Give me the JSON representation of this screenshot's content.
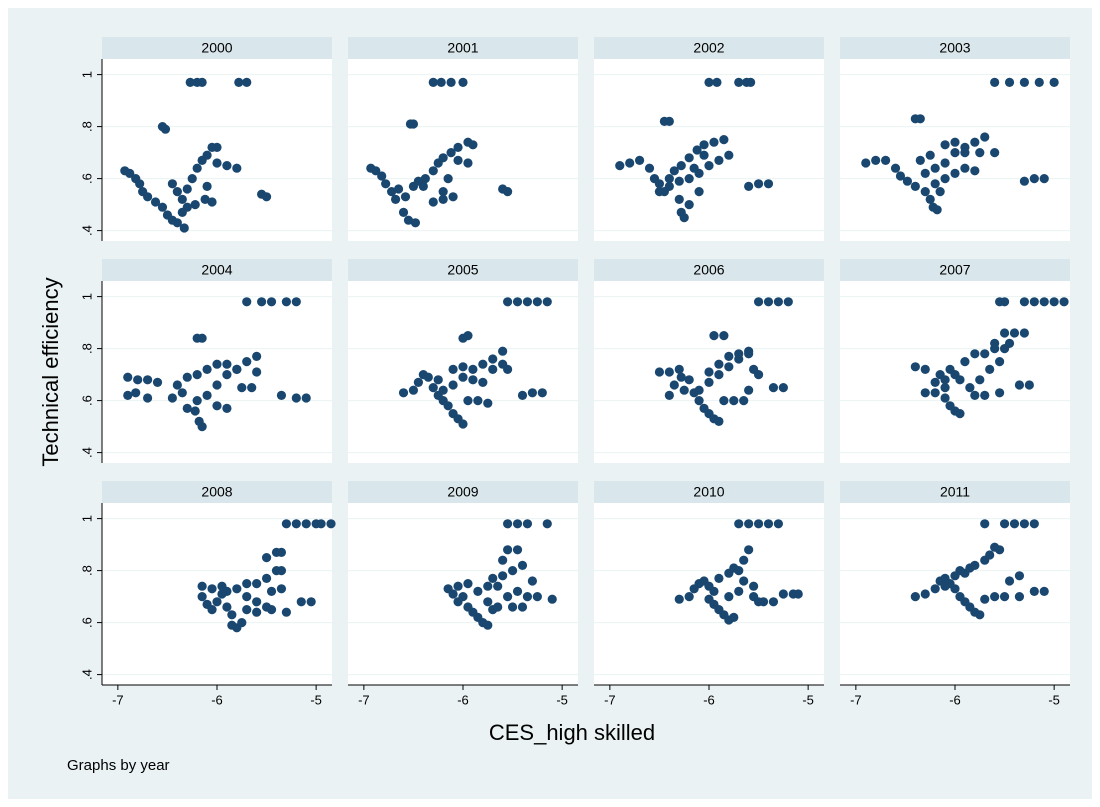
{
  "chart_data": {
    "type": "scatter",
    "x_label": "CES_high skilled",
    "y_label": "Technical efficiency",
    "note": "Graphs by year",
    "color": "#1a476f",
    "xlim": [
      -7.16,
      -4.84
    ],
    "ylim": [
      0.36,
      1.06
    ],
    "xticks": [
      -7,
      -6,
      -5
    ],
    "yticks": [
      {
        "value": 0.4,
        "label": ".4"
      },
      {
        "value": 0.6,
        "label": ".6"
      },
      {
        "value": 0.8,
        "label": ".8"
      },
      {
        "value": 1,
        "label": "1"
      }
    ],
    "grid": true,
    "panels": [
      {
        "title": "2000",
        "x": [
          -6.93,
          -6.88,
          -6.82,
          -6.78,
          -6.75,
          -6.7,
          -6.62,
          -6.55,
          -6.5,
          -6.45,
          -6.4,
          -6.33,
          -6.55,
          -6.52,
          -6.27,
          -6.2,
          -6.15,
          -5.78,
          -5.7,
          -6.45,
          -6.4,
          -6.35,
          -6.3,
          -6.25,
          -6.2,
          -6.15,
          -6.1,
          -6.05,
          -6.0,
          -6.3,
          -6.22,
          -6.12,
          -6.05,
          -6.1,
          -6.0,
          -5.9,
          -5.8,
          -5.55,
          -5.5,
          -6.35
        ],
        "y": [
          0.63,
          0.62,
          0.6,
          0.58,
          0.55,
          0.53,
          0.51,
          0.49,
          0.46,
          0.44,
          0.43,
          0.41,
          0.8,
          0.79,
          0.97,
          0.97,
          0.97,
          0.97,
          0.97,
          0.58,
          0.55,
          0.52,
          0.56,
          0.6,
          0.64,
          0.67,
          0.69,
          0.72,
          0.72,
          0.49,
          0.5,
          0.52,
          0.51,
          0.57,
          0.66,
          0.65,
          0.64,
          0.54,
          0.53,
          0.47
        ]
      },
      {
        "title": "2001",
        "x": [
          -6.93,
          -6.88,
          -6.82,
          -6.78,
          -6.72,
          -6.68,
          -6.6,
          -6.55,
          -6.48,
          -6.53,
          -6.5,
          -6.3,
          -6.22,
          -6.12,
          -6.0,
          -6.65,
          -6.58,
          -6.5,
          -6.45,
          -6.38,
          -6.3,
          -6.25,
          -6.2,
          -6.12,
          -6.05,
          -5.95,
          -5.9,
          -6.3,
          -6.2,
          -6.1,
          -6.4,
          -6.15,
          -6.05,
          -5.95,
          -5.6,
          -5.55,
          -6.2
        ],
        "y": [
          0.64,
          0.63,
          0.61,
          0.58,
          0.55,
          0.52,
          0.47,
          0.44,
          0.43,
          0.81,
          0.81,
          0.97,
          0.97,
          0.97,
          0.97,
          0.56,
          0.53,
          0.57,
          0.59,
          0.6,
          0.63,
          0.66,
          0.68,
          0.7,
          0.72,
          0.74,
          0.73,
          0.51,
          0.52,
          0.53,
          0.57,
          0.6,
          0.67,
          0.66,
          0.56,
          0.55,
          0.55
        ]
      },
      {
        "title": "2002",
        "x": [
          -6.9,
          -6.8,
          -6.7,
          -6.6,
          -6.55,
          -6.5,
          -6.45,
          -6.4,
          -6.35,
          -6.28,
          -6.2,
          -6.12,
          -6.05,
          -5.95,
          -5.85,
          -6.45,
          -6.4,
          -6.0,
          -5.92,
          -5.7,
          -5.62,
          -5.58,
          -6.5,
          -6.4,
          -6.3,
          -6.2,
          -6.1,
          -6.0,
          -5.9,
          -5.8,
          -6.3,
          -6.28,
          -6.25,
          -6.2,
          -6.1,
          -5.6,
          -5.5,
          -5.4,
          -6.15,
          -6.05
        ],
        "y": [
          0.65,
          0.66,
          0.67,
          0.64,
          0.6,
          0.58,
          0.55,
          0.6,
          0.63,
          0.65,
          0.68,
          0.71,
          0.73,
          0.74,
          0.75,
          0.82,
          0.82,
          0.97,
          0.97,
          0.97,
          0.97,
          0.97,
          0.55,
          0.57,
          0.59,
          0.6,
          0.62,
          0.65,
          0.67,
          0.69,
          0.52,
          0.47,
          0.45,
          0.5,
          0.55,
          0.57,
          0.58,
          0.58,
          0.64,
          0.69
        ]
      },
      {
        "title": "2003",
        "x": [
          -6.9,
          -6.8,
          -6.7,
          -6.6,
          -6.55,
          -6.48,
          -6.4,
          -6.3,
          -6.25,
          -6.22,
          -6.18,
          -6.4,
          -6.35,
          -5.6,
          -5.45,
          -5.3,
          -5.15,
          -5.0,
          -6.3,
          -6.2,
          -6.1,
          -6.0,
          -5.9,
          -5.8,
          -5.7,
          -6.35,
          -6.25,
          -6.1,
          -6.0,
          -5.9,
          -5.75,
          -5.6,
          -6.2,
          -6.1,
          -6.0,
          -5.9,
          -5.8,
          -5.3,
          -5.2,
          -5.1,
          -6.15
        ],
        "y": [
          0.66,
          0.67,
          0.67,
          0.64,
          0.61,
          0.59,
          0.57,
          0.55,
          0.52,
          0.49,
          0.48,
          0.83,
          0.83,
          0.97,
          0.97,
          0.97,
          0.97,
          0.97,
          0.62,
          0.64,
          0.66,
          0.7,
          0.72,
          0.74,
          0.76,
          0.67,
          0.69,
          0.73,
          0.74,
          0.7,
          0.7,
          0.7,
          0.58,
          0.6,
          0.62,
          0.64,
          0.63,
          0.59,
          0.6,
          0.6,
          0.55
        ]
      },
      {
        "title": "2004",
        "x": [
          -6.9,
          -6.8,
          -6.7,
          -6.6,
          -6.9,
          -6.82,
          -6.7,
          -6.45,
          -6.4,
          -6.35,
          -6.3,
          -6.22,
          -6.18,
          -6.15,
          -6.2,
          -6.15,
          -5.7,
          -5.55,
          -5.45,
          -5.3,
          -5.2,
          -6.2,
          -6.1,
          -6.0,
          -5.9,
          -5.8,
          -5.7,
          -5.6,
          -6.3,
          -6.2,
          -6.1,
          -6.0,
          -5.9,
          -5.8,
          -5.6,
          -6.0,
          -5.9,
          -5.75,
          -5.65,
          -5.35,
          -5.2,
          -5.1
        ],
        "y": [
          0.69,
          0.68,
          0.68,
          0.67,
          0.62,
          0.63,
          0.61,
          0.61,
          0.66,
          0.63,
          0.57,
          0.56,
          0.52,
          0.5,
          0.84,
          0.84,
          0.98,
          0.98,
          0.98,
          0.98,
          0.98,
          0.6,
          0.62,
          0.66,
          0.7,
          0.72,
          0.75,
          0.77,
          0.69,
          0.7,
          0.72,
          0.74,
          0.74,
          0.72,
          0.71,
          0.58,
          0.57,
          0.65,
          0.65,
          0.62,
          0.61,
          0.61
        ]
      },
      {
        "title": "2005",
        "x": [
          -6.6,
          -6.5,
          -6.45,
          -6.4,
          -6.35,
          -6.3,
          -6.25,
          -6.2,
          -6.15,
          -6.1,
          -6.05,
          -6.0,
          -6.0,
          -5.95,
          -5.55,
          -5.45,
          -5.35,
          -5.25,
          -5.15,
          -6.2,
          -6.1,
          -6.0,
          -5.9,
          -5.8,
          -5.7,
          -5.6,
          -6.1,
          -6.0,
          -5.9,
          -5.8,
          -5.7,
          -5.6,
          -5.55,
          -5.95,
          -5.85,
          -5.75,
          -5.4,
          -5.3,
          -5.2,
          -6.25
        ],
        "y": [
          0.63,
          0.64,
          0.67,
          0.7,
          0.69,
          0.65,
          0.62,
          0.6,
          0.58,
          0.55,
          0.53,
          0.51,
          0.84,
          0.85,
          0.98,
          0.98,
          0.98,
          0.98,
          0.98,
          0.64,
          0.66,
          0.69,
          0.72,
          0.74,
          0.76,
          0.79,
          0.72,
          0.73,
          0.68,
          0.67,
          0.72,
          0.74,
          0.72,
          0.6,
          0.6,
          0.59,
          0.62,
          0.63,
          0.63,
          0.68
        ]
      },
      {
        "title": "2006",
        "x": [
          -6.5,
          -6.4,
          -6.3,
          -6.4,
          -6.35,
          -6.28,
          -6.2,
          -6.15,
          -6.1,
          -6.05,
          -6.0,
          -5.95,
          -5.9,
          -5.95,
          -5.85,
          -5.5,
          -5.4,
          -5.3,
          -5.2,
          -6.1,
          -6.0,
          -5.9,
          -5.8,
          -5.7,
          -5.6,
          -6.0,
          -5.9,
          -5.8,
          -5.7,
          -5.6,
          -5.55,
          -5.5,
          -5.85,
          -5.75,
          -5.65,
          -5.6,
          -5.35,
          -5.25,
          -6.25
        ],
        "y": [
          0.71,
          0.71,
          0.72,
          0.62,
          0.66,
          0.69,
          0.68,
          0.63,
          0.6,
          0.57,
          0.55,
          0.53,
          0.52,
          0.85,
          0.85,
          0.98,
          0.98,
          0.98,
          0.98,
          0.64,
          0.67,
          0.7,
          0.73,
          0.76,
          0.79,
          0.71,
          0.74,
          0.77,
          0.78,
          0.78,
          0.72,
          0.7,
          0.6,
          0.6,
          0.6,
          0.64,
          0.65,
          0.65,
          0.64
        ]
      },
      {
        "title": "2007",
        "x": [
          -6.4,
          -6.3,
          -6.2,
          -6.15,
          -6.1,
          -6.05,
          -6.0,
          -6.3,
          -6.2,
          -6.1,
          -6.05,
          -6.0,
          -5.95,
          -5.85,
          -5.75,
          -5.65,
          -5.55,
          -5.5,
          -5.45,
          -5.6,
          -5.5,
          -5.4,
          -5.3,
          -5.55,
          -5.5,
          -5.3,
          -5.2,
          -5.1,
          -5.0,
          -4.9,
          -5.9,
          -5.8,
          -5.7,
          -5.6,
          -5.8,
          -5.7,
          -5.55,
          -5.35,
          -5.25,
          -5.95,
          -6.1
        ],
        "y": [
          0.73,
          0.72,
          0.67,
          0.7,
          0.68,
          0.72,
          0.7,
          0.63,
          0.63,
          0.61,
          0.58,
          0.56,
          0.55,
          0.65,
          0.68,
          0.72,
          0.75,
          0.8,
          0.82,
          0.82,
          0.86,
          0.86,
          0.86,
          0.98,
          0.98,
          0.98,
          0.98,
          0.98,
          0.98,
          0.98,
          0.75,
          0.78,
          0.78,
          0.8,
          0.62,
          0.62,
          0.63,
          0.66,
          0.66,
          0.68,
          0.65
        ]
      },
      {
        "title": "2008",
        "x": [
          -6.15,
          -6.05,
          -5.95,
          -6.15,
          -6.1,
          -6.05,
          -6.0,
          -5.95,
          -5.9,
          -5.85,
          -5.85,
          -5.8,
          -5.75,
          -5.9,
          -5.8,
          -5.7,
          -5.6,
          -5.5,
          -5.4,
          -5.35,
          -5.5,
          -5.4,
          -5.35,
          -5.3,
          -5.2,
          -5.1,
          -5.0,
          -4.95,
          -4.85,
          -5.7,
          -5.6,
          -5.5,
          -5.7,
          -5.6,
          -5.45,
          -5.3,
          -5.15,
          -5.05,
          -5.35,
          -5.45
        ],
        "y": [
          0.74,
          0.73,
          0.74,
          0.7,
          0.67,
          0.65,
          0.68,
          0.71,
          0.66,
          0.63,
          0.59,
          0.58,
          0.6,
          0.72,
          0.73,
          0.75,
          0.75,
          0.77,
          0.8,
          0.8,
          0.85,
          0.87,
          0.87,
          0.98,
          0.98,
          0.98,
          0.98,
          0.98,
          0.98,
          0.7,
          0.68,
          0.66,
          0.65,
          0.64,
          0.65,
          0.64,
          0.68,
          0.68,
          0.73,
          0.72
        ]
      },
      {
        "title": "2009",
        "x": [
          -6.15,
          -6.05,
          -5.95,
          -6.05,
          -6.0,
          -5.95,
          -5.9,
          -5.85,
          -5.8,
          -5.75,
          -5.7,
          -5.85,
          -5.75,
          -5.7,
          -5.6,
          -5.5,
          -5.4,
          -5.6,
          -5.55,
          -5.45,
          -5.55,
          -5.45,
          -5.35,
          -5.15,
          -5.75,
          -5.65,
          -5.55,
          -5.45,
          -5.35,
          -5.25,
          -5.1,
          -5.5,
          -5.4,
          -5.65,
          -5.3,
          -6.1
        ],
        "y": [
          0.73,
          0.74,
          0.75,
          0.68,
          0.7,
          0.66,
          0.64,
          0.62,
          0.6,
          0.59,
          0.65,
          0.72,
          0.74,
          0.77,
          0.78,
          0.8,
          0.82,
          0.84,
          0.88,
          0.88,
          0.98,
          0.98,
          0.98,
          0.98,
          0.68,
          0.66,
          0.7,
          0.72,
          0.7,
          0.7,
          0.69,
          0.66,
          0.66,
          0.74,
          0.76,
          0.71
        ]
      },
      {
        "title": "2010",
        "x": [
          -6.3,
          -6.2,
          -6.15,
          -6.1,
          -6.05,
          -6.0,
          -5.95,
          -6.0,
          -5.95,
          -5.9,
          -5.85,
          -5.8,
          -5.75,
          -5.9,
          -5.8,
          -5.75,
          -5.7,
          -5.65,
          -5.6,
          -5.7,
          -5.6,
          -5.5,
          -5.4,
          -5.3,
          -5.65,
          -5.55,
          -5.55,
          -5.45,
          -5.35,
          -5.5,
          -5.25,
          -5.15,
          -5.1,
          -5.8,
          -5.7
        ],
        "y": [
          0.69,
          0.7,
          0.73,
          0.75,
          0.76,
          0.74,
          0.72,
          0.69,
          0.67,
          0.65,
          0.63,
          0.61,
          0.62,
          0.77,
          0.79,
          0.81,
          0.8,
          0.84,
          0.88,
          0.98,
          0.98,
          0.98,
          0.98,
          0.98,
          0.76,
          0.74,
          0.7,
          0.68,
          0.68,
          0.68,
          0.71,
          0.71,
          0.71,
          0.7,
          0.72
        ]
      },
      {
        "title": "2011",
        "x": [
          -6.4,
          -6.3,
          -6.2,
          -6.15,
          -6.1,
          -6.05,
          -6.0,
          -5.95,
          -5.9,
          -5.85,
          -5.8,
          -5.7,
          -5.65,
          -5.6,
          -5.55,
          -5.7,
          -5.5,
          -5.4,
          -5.3,
          -5.2,
          -6.0,
          -5.95,
          -5.9,
          -5.85,
          -5.8,
          -5.75,
          -5.7,
          -5.6,
          -5.5,
          -5.35,
          -5.2,
          -5.1,
          -5.45,
          -5.35,
          -6.1
        ],
        "y": [
          0.7,
          0.71,
          0.73,
          0.76,
          0.77,
          0.75,
          0.78,
          0.8,
          0.79,
          0.81,
          0.82,
          0.84,
          0.86,
          0.89,
          0.88,
          0.98,
          0.98,
          0.98,
          0.98,
          0.98,
          0.73,
          0.7,
          0.68,
          0.66,
          0.64,
          0.63,
          0.69,
          0.7,
          0.7,
          0.7,
          0.72,
          0.72,
          0.76,
          0.78,
          0.74
        ]
      }
    ]
  }
}
